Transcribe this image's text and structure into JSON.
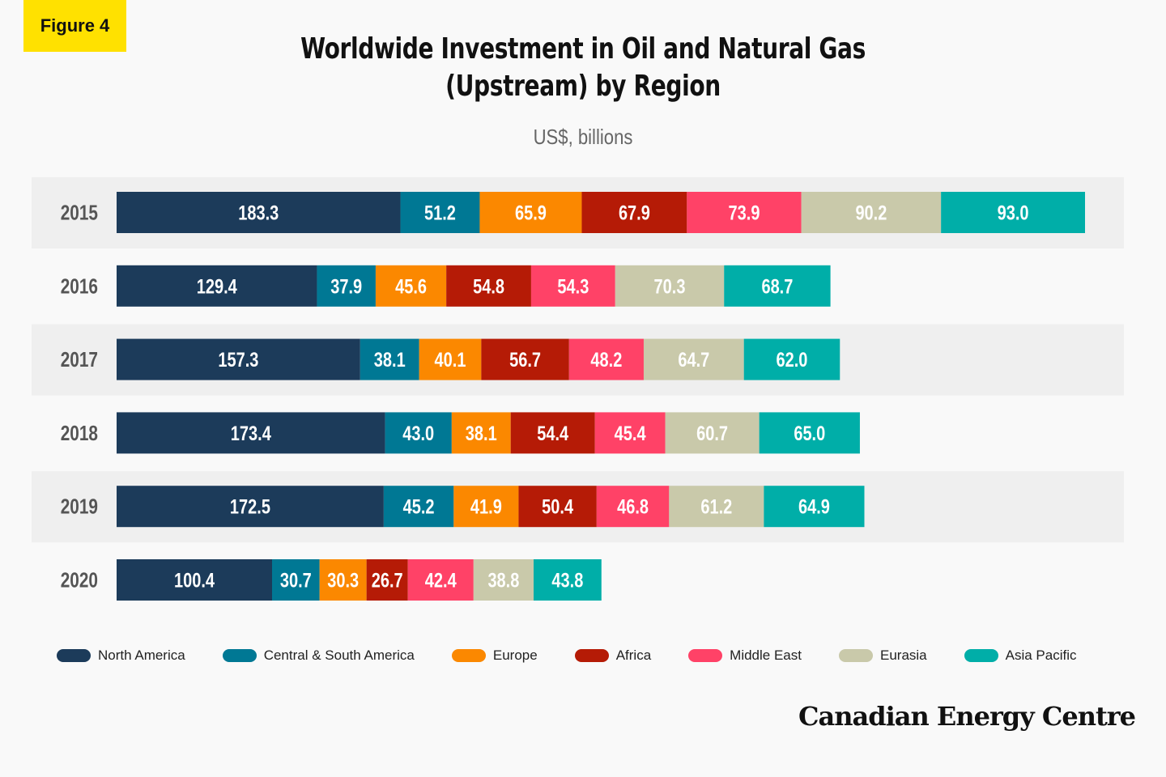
{
  "badge": "Figure 4",
  "brand": "Canadian Energy Centre",
  "chart_data": {
    "type": "bar",
    "orientation": "horizontal",
    "stacked": true,
    "title": "Worldwide Investment in Oil and Natural Gas (Upstream) by Region",
    "title_lines": [
      "Worldwide Investment in Oil and Natural Gas",
      "(Upstream) by Region"
    ],
    "subtitle": "US$, billions",
    "categories": [
      "2015",
      "2016",
      "2017",
      "2018",
      "2019",
      "2020"
    ],
    "series": [
      {
        "name": "North America",
        "color": "#1c3b5a",
        "values": [
          183.3,
          129.4,
          157.3,
          173.4,
          172.5,
          100.4
        ]
      },
      {
        "name": "Central & South America",
        "color": "#007894",
        "values": [
          51.2,
          37.9,
          38.1,
          43.0,
          45.2,
          30.7
        ]
      },
      {
        "name": "Europe",
        "color": "#fb8800",
        "values": [
          65.9,
          45.6,
          40.1,
          38.1,
          41.9,
          30.3
        ]
      },
      {
        "name": "Africa",
        "color": "#b51b06",
        "values": [
          67.9,
          54.8,
          56.7,
          54.4,
          50.4,
          26.7
        ]
      },
      {
        "name": "Middle East",
        "color": "#ff4267",
        "values": [
          73.9,
          54.3,
          48.2,
          45.4,
          46.8,
          42.4
        ]
      },
      {
        "name": "Eurasia",
        "color": "#c9c9aa",
        "values": [
          90.2,
          70.3,
          64.7,
          60.7,
          61.2,
          38.8
        ]
      },
      {
        "name": "Asia Pacific",
        "color": "#00aea8",
        "values": [
          93.0,
          68.7,
          62.0,
          65.0,
          64.9,
          43.8
        ]
      }
    ],
    "data_labels": true,
    "legend_position": "bottom",
    "grid": false,
    "row_stripe_color": "#efefef"
  }
}
